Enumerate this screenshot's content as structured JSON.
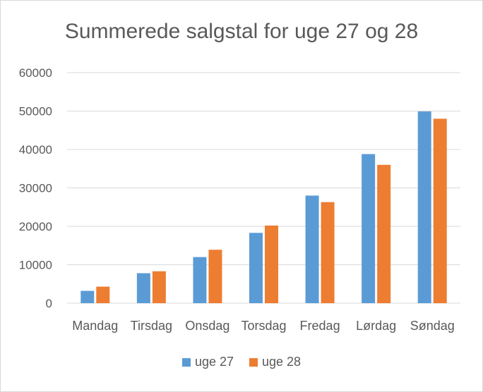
{
  "chart_data": {
    "type": "bar",
    "title": "Summerede salgstal for uge 27 og 28",
    "categories": [
      "Mandag",
      "Tirsdag",
      "Onsdag",
      "Torsdag",
      "Fredag",
      "Lørdag",
      "Søndag"
    ],
    "series": [
      {
        "name": "uge 27",
        "color": "#5b9bd5",
        "values": [
          3200,
          7800,
          12000,
          18300,
          28000,
          38800,
          49900
        ]
      },
      {
        "name": "uge 28",
        "color": "#ed7d31",
        "values": [
          4300,
          8300,
          13900,
          20200,
          26300,
          36000,
          48000
        ]
      }
    ],
    "ylim": [
      0,
      60000
    ],
    "yticks": [
      "0",
      "10000",
      "20000",
      "30000",
      "40000",
      "50000",
      "60000"
    ],
    "grid": true,
    "legend": "bottom"
  }
}
